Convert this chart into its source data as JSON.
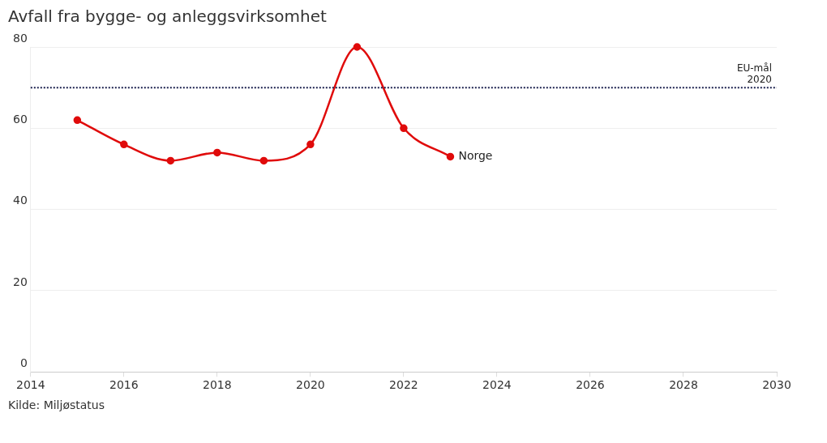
{
  "chart_data": {
    "type": "line",
    "title": "Avfall fra bygge- og anleggsvirksomhet",
    "x": [
      2015,
      2016,
      2017,
      2018,
      2019,
      2020,
      2021,
      2022,
      2023
    ],
    "series": [
      {
        "name": "Norge",
        "color": "#e00b0b",
        "values": [
          62,
          56,
          52,
          54,
          52,
          56,
          80,
          60,
          53
        ]
      }
    ],
    "xlim": [
      2014,
      2030
    ],
    "xticks": [
      2014,
      2016,
      2018,
      2020,
      2022,
      2024,
      2026,
      2028,
      2030
    ],
    "ylim": [
      0,
      80
    ],
    "yticks": [
      0,
      20,
      40,
      60,
      80
    ],
    "ref_lines": [
      {
        "axis": "y",
        "value": 70,
        "label": "EU-mål 2020",
        "color": "#1a1f4d",
        "line_style": "dotted"
      }
    ],
    "grid": "y",
    "marker": "circle",
    "line_style": "solid",
    "legend": false,
    "annotations": [
      "Kilde: Miljøstatus"
    ]
  }
}
